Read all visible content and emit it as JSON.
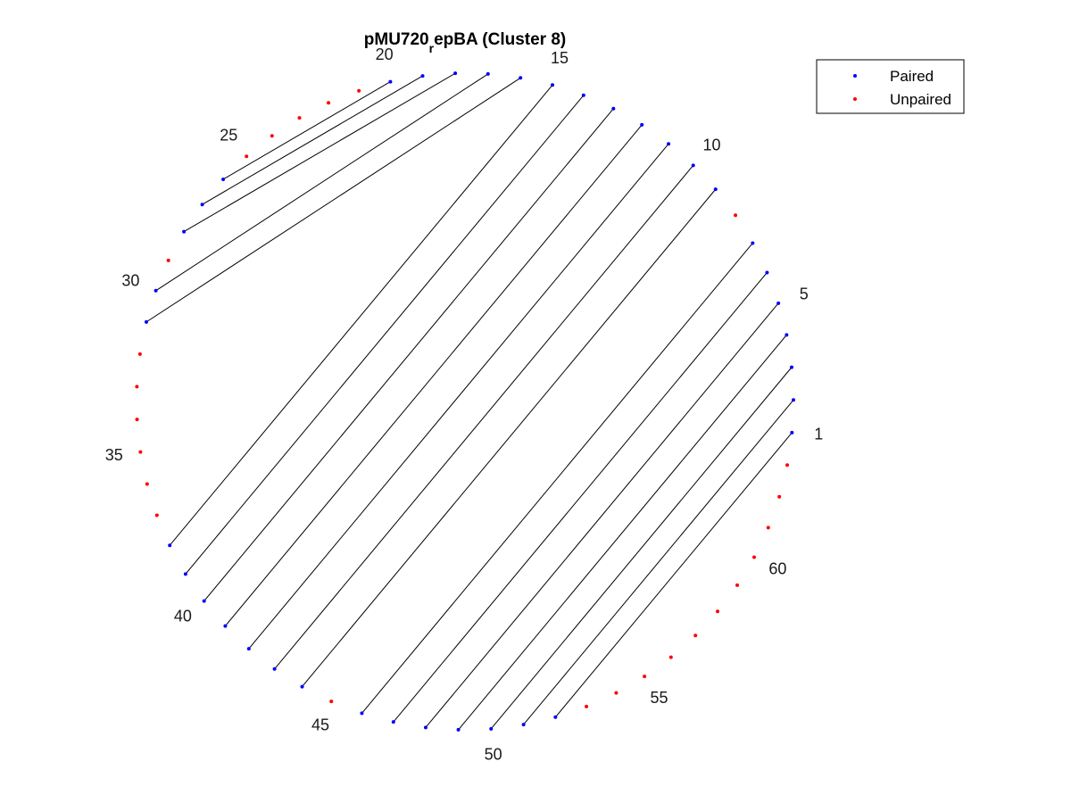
{
  "chart_data": {
    "type": "arc-diagram",
    "layout": "circular",
    "title": "pMU720_rep BA (Cluster 8)",
    "title_parts": {
      "main": "pMU720",
      "subscript": "r",
      "rest": "epBA (Cluster 8)"
    },
    "n_positions": 63,
    "tick_labels": [
      "1",
      "5",
      "10",
      "15",
      "20",
      "25",
      "30",
      "35",
      "40",
      "45",
      "50",
      "55",
      "60"
    ],
    "pairs": [
      [
        1,
        52
      ],
      [
        2,
        51
      ],
      [
        3,
        50
      ],
      [
        4,
        49
      ],
      [
        5,
        48
      ],
      [
        6,
        47
      ],
      [
        7,
        46
      ],
      [
        9,
        44
      ],
      [
        10,
        43
      ],
      [
        11,
        42
      ],
      [
        12,
        41
      ],
      [
        13,
        40
      ],
      [
        14,
        39
      ],
      [
        15,
        38
      ],
      [
        16,
        31
      ],
      [
        17,
        30
      ],
      [
        18,
        28
      ],
      [
        19,
        27
      ],
      [
        20,
        26
      ]
    ],
    "unpaired": [
      8,
      21,
      22,
      23,
      24,
      25,
      29,
      32,
      33,
      34,
      35,
      36,
      37,
      45,
      53,
      54,
      55,
      56,
      57,
      58,
      59,
      60,
      61,
      62,
      63
    ],
    "legend": {
      "placement": "top-right",
      "entries": [
        {
          "label": "Paired",
          "color": "#0000ff"
        },
        {
          "label": "Unpaired",
          "color": "#ff0000"
        }
      ]
    },
    "colors": {
      "paired": "#0000ff",
      "unpaired": "#ff0000",
      "link": "#000000"
    }
  }
}
